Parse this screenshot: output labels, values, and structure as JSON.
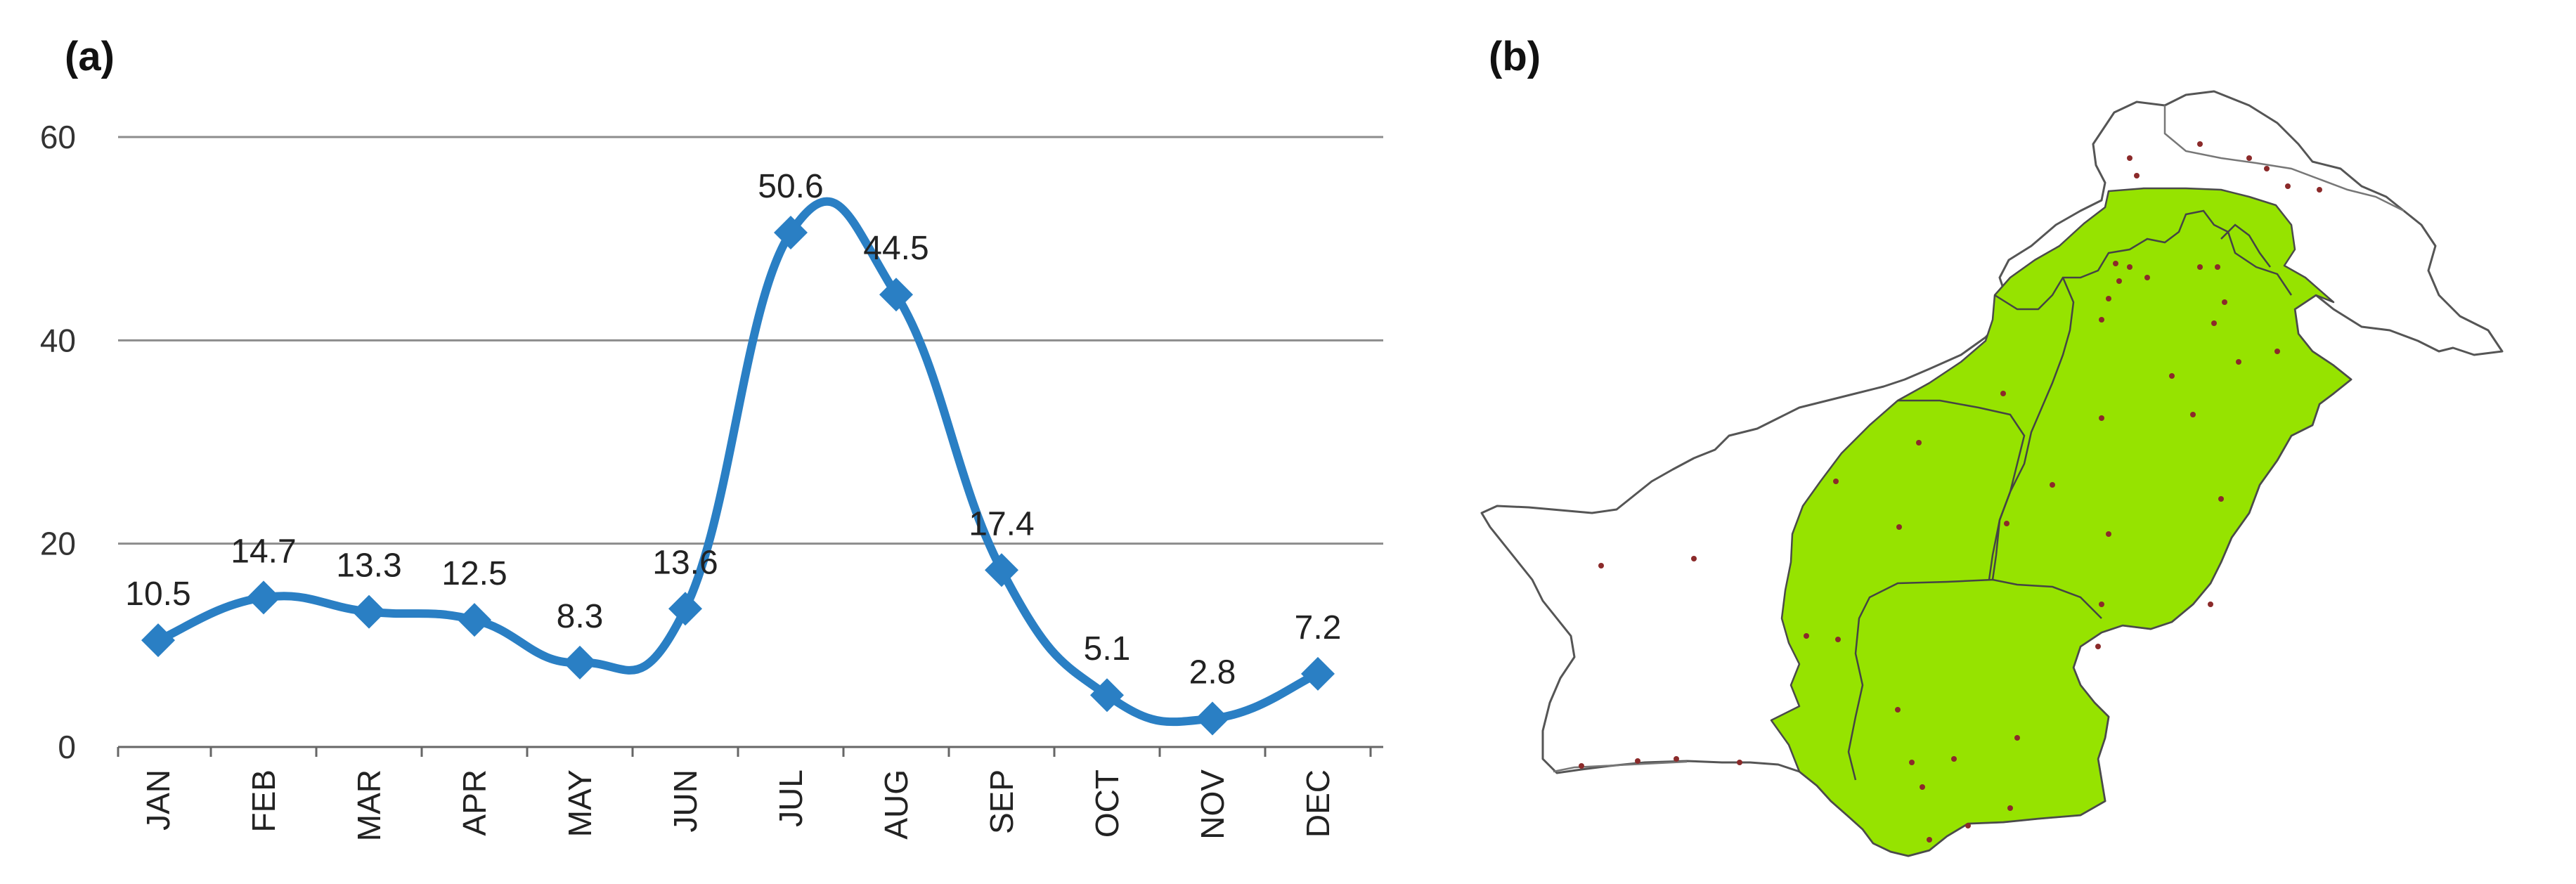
{
  "panels": {
    "a_label": "(a)",
    "b_label": "(b)"
  },
  "chart_data": {
    "type": "line",
    "categories": [
      "JAN",
      "FEB",
      "MAR",
      "APR",
      "MAY",
      "JUN",
      "JUL",
      "AUG",
      "SEP",
      "OCT",
      "NOV",
      "DEC"
    ],
    "values": [
      10.5,
      14.7,
      13.3,
      12.5,
      8.3,
      13.6,
      50.6,
      44.5,
      17.4,
      5.1,
      2.8,
      7.2
    ],
    "data_labels": [
      "10.5",
      "14.7",
      "13.3",
      "12.5",
      "8.3",
      "13.6",
      "50.6",
      "44.5",
      "17.4",
      "5.1",
      "2.8",
      "7.2"
    ],
    "ylim": [
      0,
      60
    ],
    "yticks": [
      "0",
      "20",
      "40",
      "60"
    ],
    "ytick_values": [
      0,
      20,
      40,
      60
    ],
    "grid": true,
    "smooth": true,
    "marker": "diamond",
    "line_color": "#2a7fc4",
    "title": "",
    "xlabel": "",
    "ylabel": ""
  },
  "map": {
    "region_color": "#96e300",
    "outline_color": "#555555",
    "station_color": "#8b2a2a"
  }
}
